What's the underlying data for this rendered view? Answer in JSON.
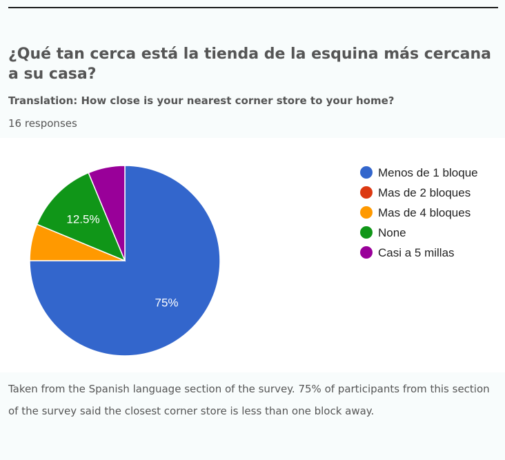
{
  "header": {
    "title": "¿Qué tan cerca está la tienda de la esquina más cercana a su casa?",
    "subtitle": "Translation: How close is your nearest corner store to your home?",
    "responses": "16 responses"
  },
  "chart_data": {
    "type": "pie",
    "title": "¿Qué tan cerca está la tienda de la esquina más cercana a su casa?",
    "categories": [
      "Menos de 1 bloque",
      "Mas de 2 bloques",
      "Mas de 4 bloques",
      "None",
      "Casi a 5 millas"
    ],
    "values": [
      75,
      0,
      6.25,
      12.5,
      6.25
    ],
    "counts": [
      12,
      0,
      1,
      2,
      1
    ],
    "colors": [
      "#3366cc",
      "#dc3912",
      "#ff9900",
      "#109618",
      "#990099"
    ],
    "data_labels": [
      "75%",
      "",
      "",
      "12.5%",
      ""
    ],
    "legend": "right",
    "start_angle": "top, clockwise"
  },
  "caption": "Taken from the Spanish language section of the survey. 75% of participants from this section of the survey said the closest corner store is less than one block away."
}
